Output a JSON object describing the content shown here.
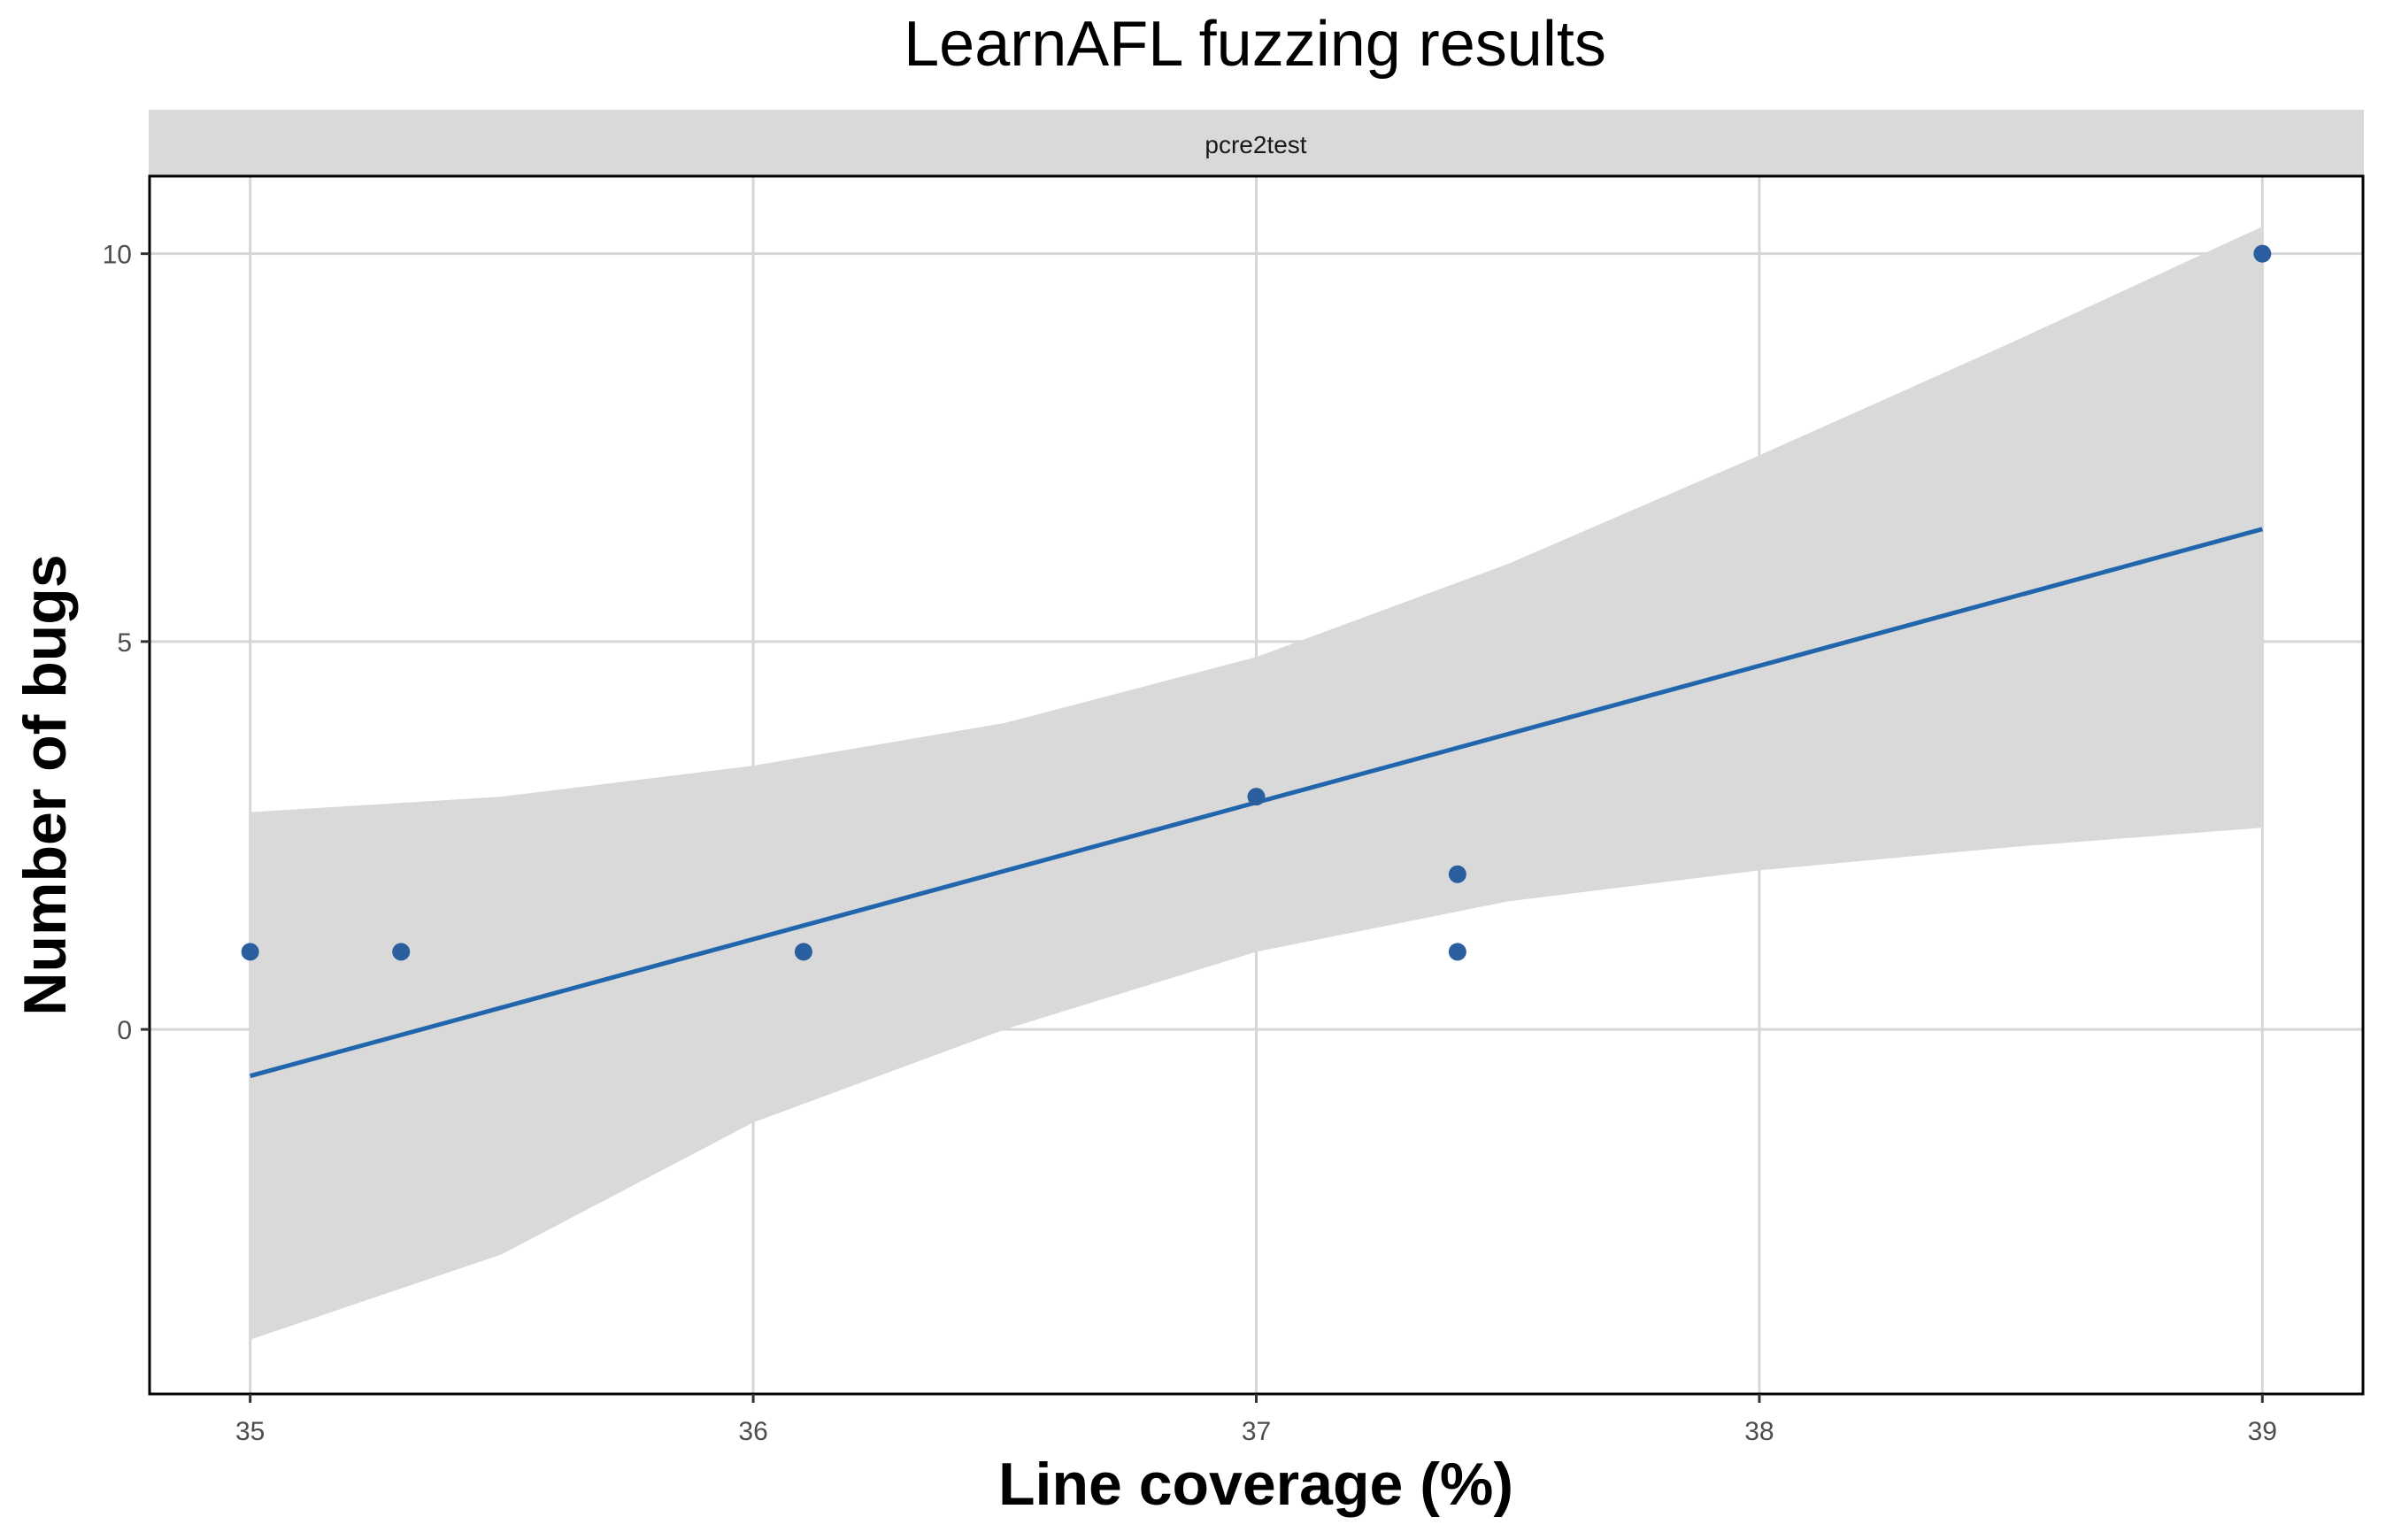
{
  "chart_data": {
    "type": "scatter",
    "title": "LearnAFL fuzzing results",
    "facet_label": "pcre2test",
    "xlabel": "Line coverage (%)",
    "ylabel": "Number of bugs",
    "xlim": [
      34.8,
      39.2
    ],
    "ylim": [
      -4.7,
      11.0
    ],
    "x_ticks": [
      35,
      36,
      37,
      38,
      39
    ],
    "x_tick_labels": [
      "35",
      "36",
      "37",
      "38",
      "39"
    ],
    "y_ticks": [
      0,
      5,
      10
    ],
    "y_tick_labels": [
      "0",
      "5",
      "10"
    ],
    "grid": true,
    "points": [
      {
        "x": 35.0,
        "y": 1
      },
      {
        "x": 35.3,
        "y": 1
      },
      {
        "x": 36.1,
        "y": 1
      },
      {
        "x": 37.0,
        "y": 3
      },
      {
        "x": 37.4,
        "y": 2
      },
      {
        "x": 37.4,
        "y": 1
      },
      {
        "x": 39.0,
        "y": 10
      }
    ],
    "fit_line": {
      "method": "linear",
      "x": [
        35.0,
        39.0
      ],
      "y": [
        -0.6,
        6.45
      ]
    },
    "confidence_band": {
      "x": [
        35.0,
        35.5,
        36.0,
        36.5,
        37.0,
        37.5,
        38.0,
        38.5,
        39.0
      ],
      "lower": [
        -4.0,
        -2.9,
        -1.2,
        0.0,
        1.0,
        1.65,
        2.05,
        2.35,
        2.6
      ],
      "upper": [
        2.8,
        3.0,
        3.4,
        3.95,
        4.8,
        6.0,
        7.4,
        8.85,
        10.35
      ]
    },
    "colors": {
      "points": "#2b5e9e",
      "fit_line": "#2166ac",
      "band": "#d9d9d9",
      "grid": "#d6d6d6",
      "strip": "#d9d9d9",
      "panel_border": "#000000"
    }
  }
}
